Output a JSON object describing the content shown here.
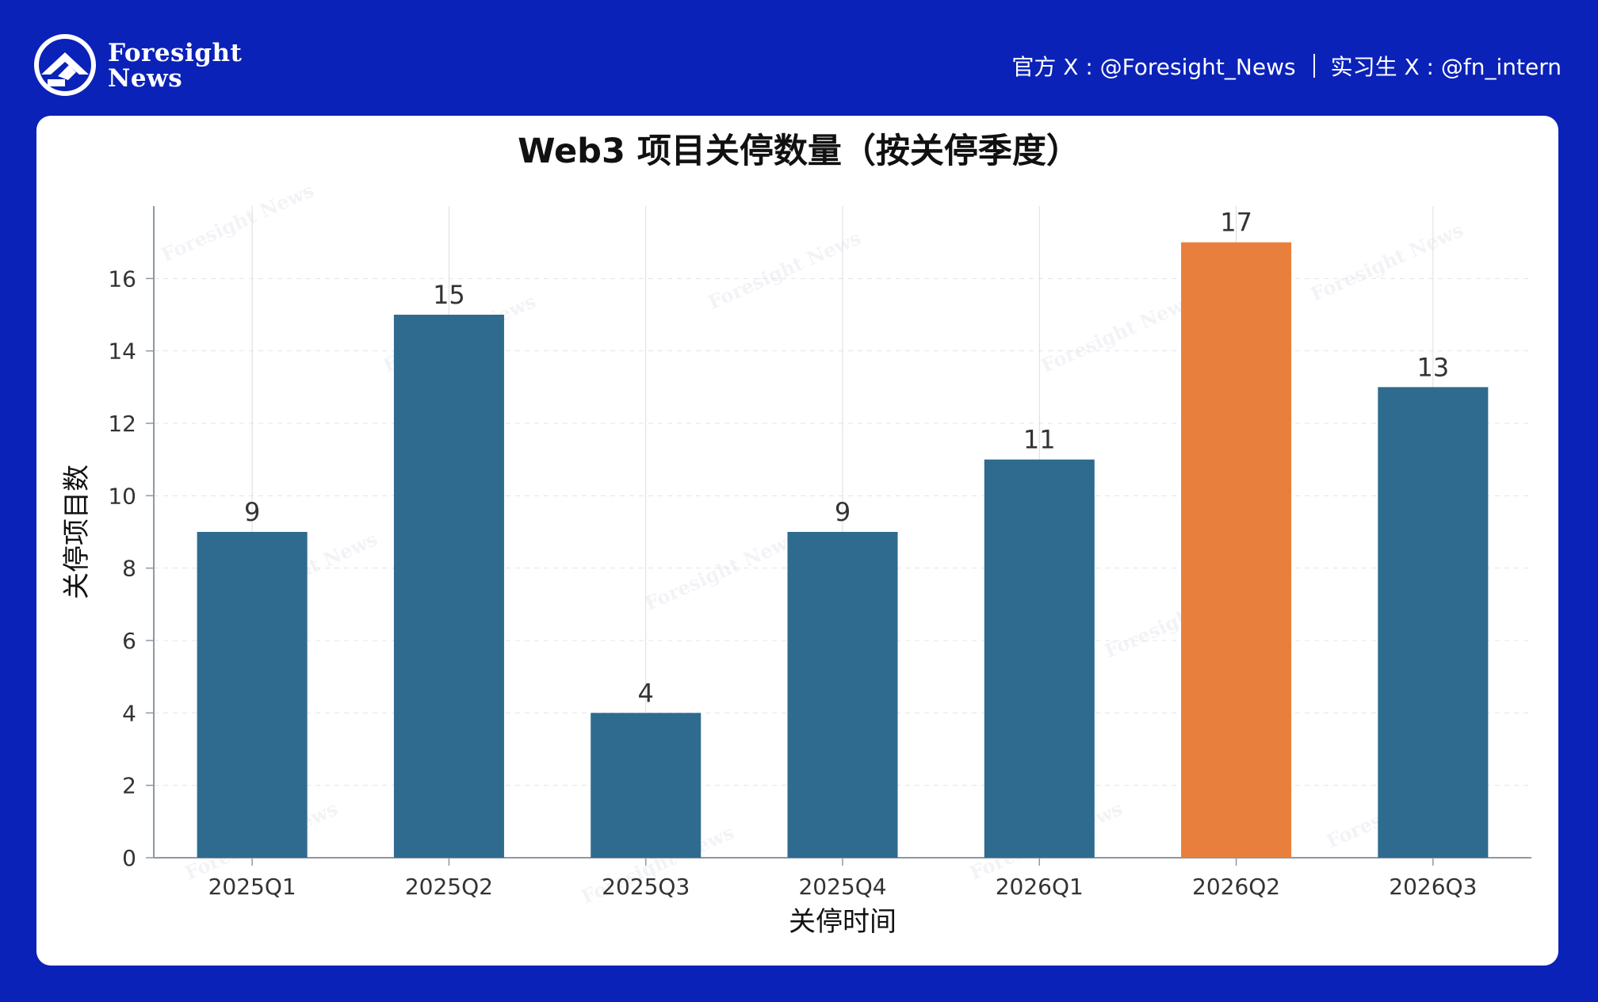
{
  "header": {
    "brand_line_1": "Foresight",
    "brand_line_2": "News",
    "official_account": "官方 X : @Foresight_News",
    "intern_account": "实习生 X : @fn_intern",
    "logo_icon": "foresight-logo-icon"
  },
  "watermark": {
    "text": "Foresight News"
  },
  "colors": {
    "page_background": "#0b22b8",
    "card_background": "#ffffff",
    "bar_default": "#2e6b8f",
    "bar_highlight": "#e97f3d",
    "axis": "#8f98a3",
    "text": "#111111"
  },
  "chart_data": {
    "type": "bar",
    "title": "Web3 项目关停数量（按关停季度）",
    "xlabel": "关停时间",
    "ylabel": "关停项目数",
    "categories": [
      "2025Q1",
      "2025Q2",
      "2025Q3",
      "2025Q4",
      "2026Q1",
      "2026Q2",
      "2026Q3"
    ],
    "values": [
      9,
      15,
      4,
      9,
      11,
      17,
      13
    ],
    "data_labels": [
      "9",
      "15",
      "4",
      "9",
      "11",
      "17",
      "13"
    ],
    "highlight_category": "2026Q2",
    "ylim": [
      0,
      18
    ],
    "yticks": [
      0,
      2,
      4,
      6,
      8,
      10,
      12,
      14,
      16
    ],
    "grid": true,
    "legend": false
  }
}
